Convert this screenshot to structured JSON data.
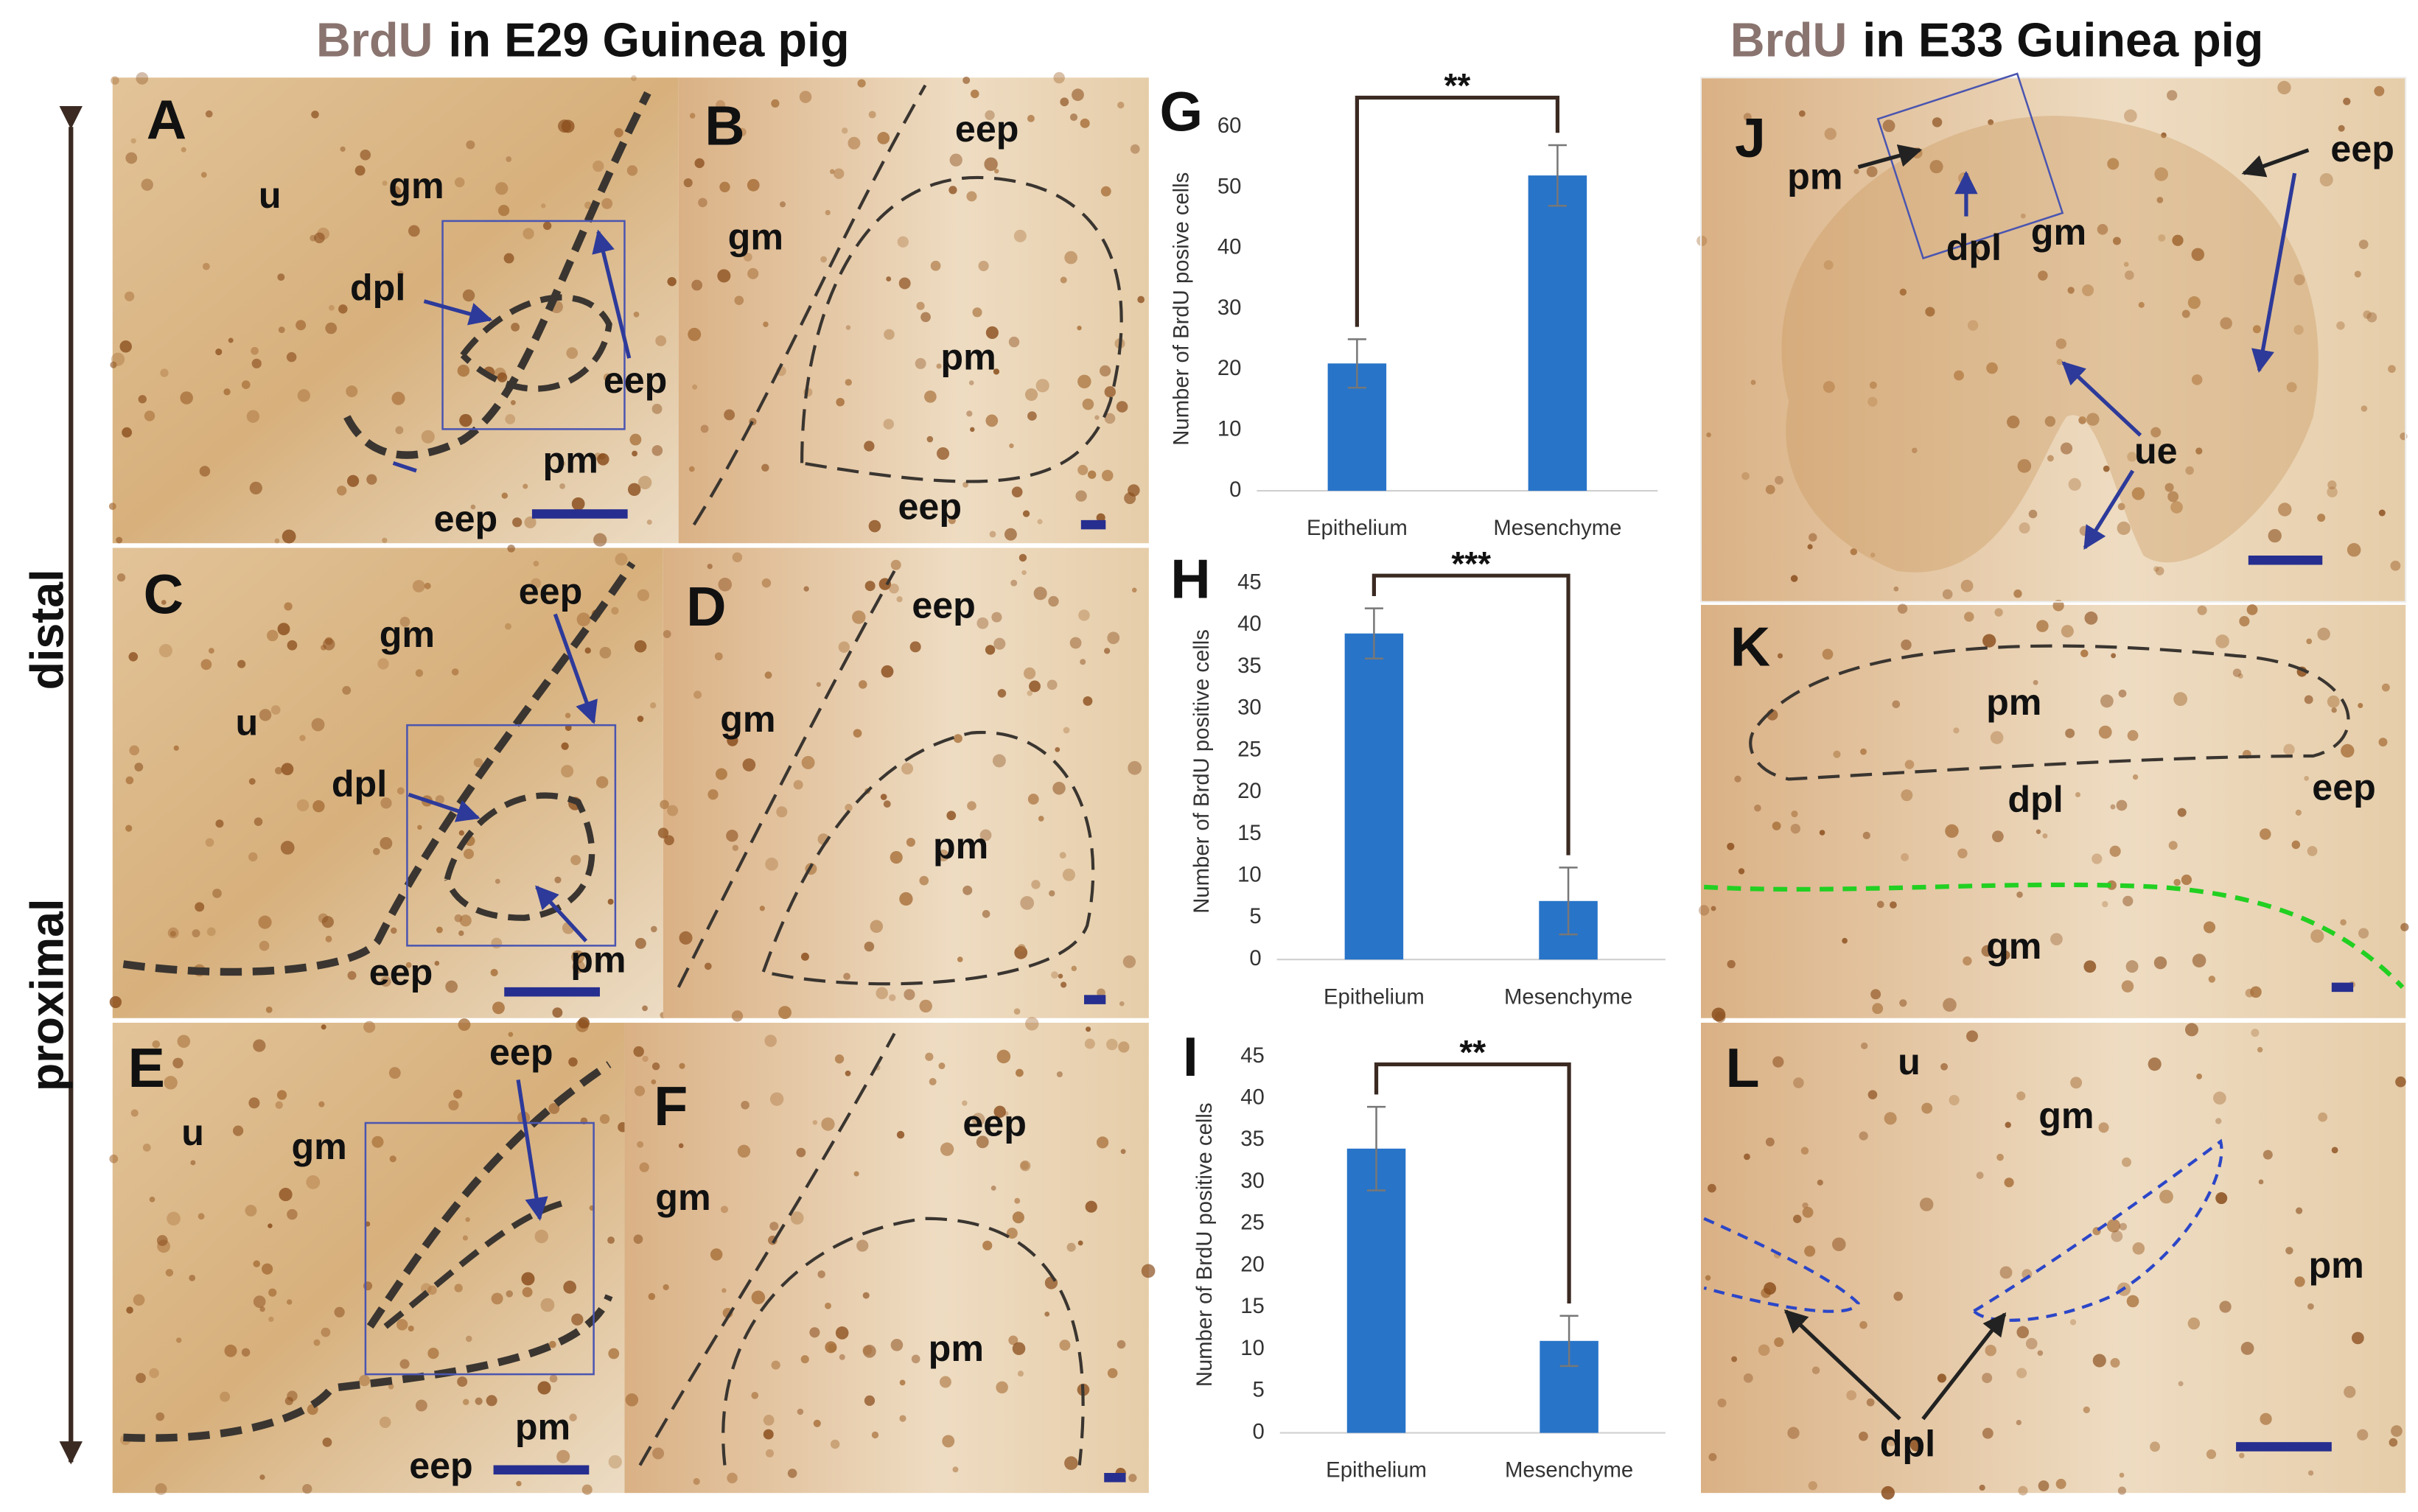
{
  "figure": {
    "title_left": {
      "stain": "BrdU",
      "rest": "in E29 Guinea pig"
    },
    "title_right": {
      "stain": "BrdU",
      "rest": "in E33 Guinea pig"
    },
    "axis_distal": "distal",
    "axis_proximal": "proximal",
    "panels": [
      {
        "letter": "A",
        "labels": [
          "u",
          "gm",
          "dpl",
          "eep",
          "pm",
          "eep"
        ]
      },
      {
        "letter": "B",
        "labels": [
          "eep",
          "gm",
          "pm",
          "eep"
        ]
      },
      {
        "letter": "C",
        "labels": [
          "gm",
          "eep",
          "u",
          "dpl",
          "pm",
          "eep"
        ]
      },
      {
        "letter": "D",
        "labels": [
          "eep",
          "gm",
          "pm"
        ]
      },
      {
        "letter": "E",
        "labels": [
          "eep",
          "u",
          "gm",
          "pm",
          "eep"
        ]
      },
      {
        "letter": "F",
        "labels": [
          "eep",
          "gm",
          "pm"
        ]
      },
      {
        "letter": "J",
        "labels": [
          "pm",
          "eep",
          "dpl",
          "gm",
          "ue"
        ]
      },
      {
        "letter": "K",
        "labels": [
          "pm",
          "dpl",
          "eep",
          "gm"
        ]
      },
      {
        "letter": "L",
        "labels": [
          "u",
          "gm",
          "pm",
          "dpl"
        ]
      }
    ]
  },
  "chart_data": [
    {
      "type": "bar",
      "label": "G",
      "y_label": "Number of BrdU posive cells",
      "categories": [
        "Epithelium",
        "Mesenchyme"
      ],
      "values": [
        21,
        52
      ],
      "errors": [
        4,
        5
      ],
      "significance": "**",
      "color": "#2874c8",
      "ylim": [
        0,
        60
      ],
      "yticks": [
        0,
        10,
        20,
        30,
        40,
        50,
        60
      ],
      "grid": false
    },
    {
      "type": "bar",
      "label": "H",
      "y_label": "Number of BrdU positive cells",
      "categories": [
        "Epithelium",
        "Mesenchyme"
      ],
      "values": [
        39,
        7
      ],
      "errors": [
        3,
        4
      ],
      "significance": "***",
      "color": "#2874c8",
      "ylim": [
        0,
        45
      ],
      "yticks": [
        0,
        5,
        10,
        15,
        20,
        25,
        30,
        35,
        40,
        45
      ],
      "grid": false
    },
    {
      "type": "bar",
      "label": "I",
      "y_label": "Number of BrdU positive cells",
      "categories": [
        "Epithelium",
        "Mesenchyme"
      ],
      "values": [
        34,
        11
      ],
      "errors": [
        5,
        3
      ],
      "significance": "**",
      "color": "#2874c8",
      "ylim": [
        0,
        45
      ],
      "yticks": [
        0,
        5,
        10,
        15,
        20,
        25,
        30,
        35,
        40,
        45
      ],
      "grid": false
    }
  ]
}
